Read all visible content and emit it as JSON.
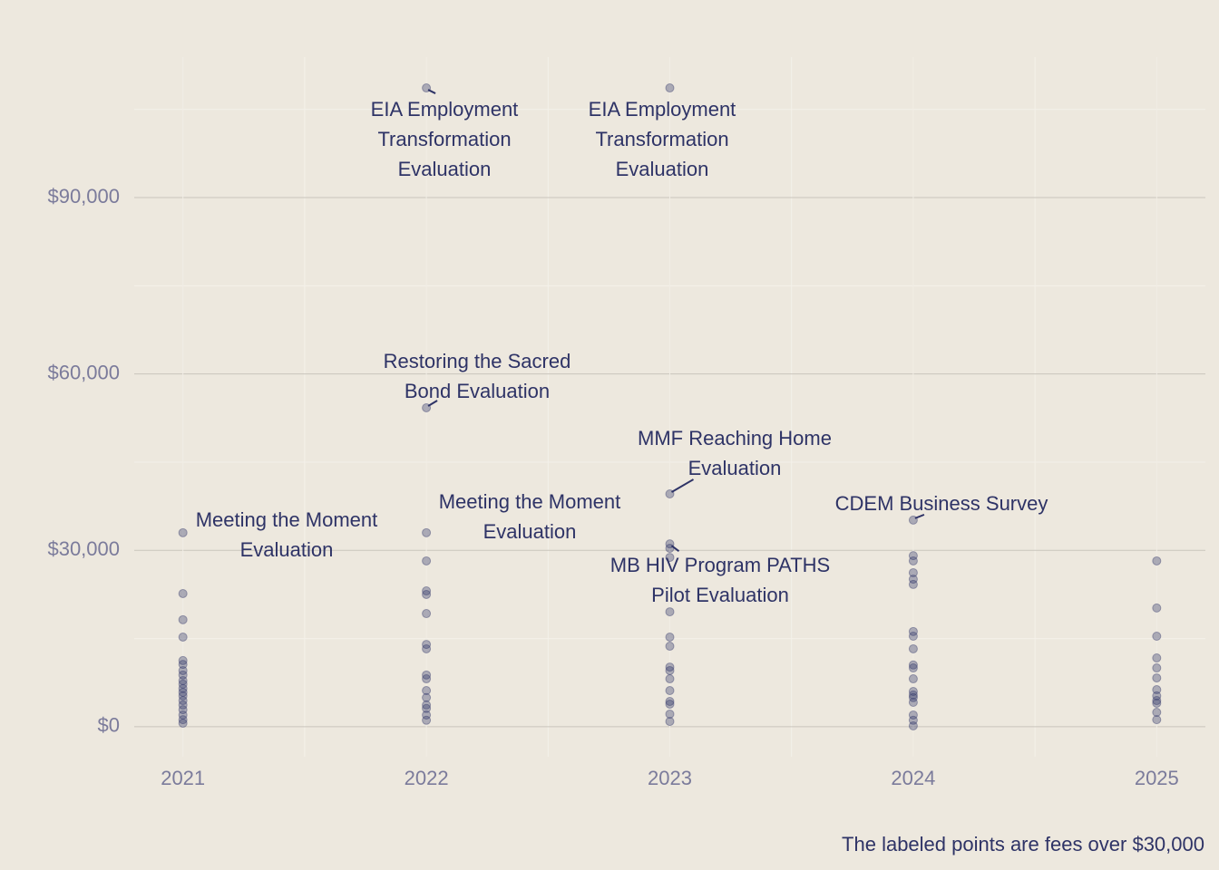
{
  "chart_data": {
    "type": "scatter",
    "caption": "The labeled points are fees over $30,000",
    "x": [
      2021,
      2021,
      2021,
      2021,
      2021,
      2021,
      2021,
      2021,
      2021,
      2021,
      2021,
      2021,
      2021,
      2021,
      2021,
      2021,
      2021,
      2021,
      2021,
      2022,
      2022,
      2022,
      2022,
      2022,
      2022,
      2022,
      2022,
      2022,
      2022,
      2022,
      2022,
      2022,
      2022,
      2022,
      2022,
      2022,
      2023,
      2023,
      2023,
      2023,
      2023,
      2023,
      2023,
      2023,
      2023,
      2023,
      2023,
      2023,
      2023,
      2023,
      2023,
      2023,
      2024,
      2024,
      2024,
      2024,
      2024,
      2024,
      2024,
      2024,
      2024,
      2024,
      2024,
      2024,
      2024,
      2024,
      2024,
      2024,
      2024,
      2024,
      2024,
      2025,
      2025,
      2025,
      2025,
      2025,
      2025,
      2025,
      2025,
      2025,
      2025,
      2025,
      2025
    ],
    "values": [
      33000,
      22650,
      18200,
      15250,
      11250,
      10600,
      9550,
      8800,
      7850,
      7250,
      6500,
      5850,
      5250,
      4450,
      3700,
      2900,
      2000,
      1200,
      600,
      108650,
      54250,
      33000,
      28200,
      23100,
      22500,
      19250,
      14000,
      13250,
      8800,
      8150,
      6150,
      4950,
      3700,
      3100,
      2000,
      1100,
      108650,
      39600,
      31100,
      30350,
      28800,
      19550,
      15250,
      13700,
      10150,
      9550,
      8150,
      6150,
      4300,
      3850,
      2150,
      900,
      35150,
      29100,
      28200,
      26200,
      25100,
      24200,
      16200,
      15400,
      13250,
      10500,
      10000,
      8150,
      6000,
      5400,
      4950,
      4150,
      2000,
      1100,
      150,
      28200,
      20200,
      15400,
      11700,
      10000,
      8300,
      6300,
      5250,
      4450,
      4000,
      2450,
      1200
    ],
    "color": "#2e3366",
    "annotations": [
      "Meeting the Moment Evaluation",
      "EIA Employment Transformation Evaluation",
      "Restoring the Sacred Bond Evaluation",
      "Meeting the Moment Evaluation",
      "EIA Employment Transformation Evaluation",
      "MMF Reaching Home Evaluation",
      "MB HIV Program PATHS Pilot Evaluation",
      "CDEM Business Survey"
    ],
    "xlim": [
      2020.8,
      2025.2
    ],
    "xticks": [
      2021,
      2022,
      2023,
      2024,
      2025
    ],
    "ylim": [
      -5100,
      113900
    ],
    "yticks": [
      {
        "value": 0,
        "label": "$0"
      },
      {
        "value": 30000,
        "label": "$30,000"
      },
      {
        "value": 60000,
        "label": "$60,000"
      },
      {
        "value": 90000,
        "label": "$90,000"
      }
    ],
    "grid": true
  }
}
